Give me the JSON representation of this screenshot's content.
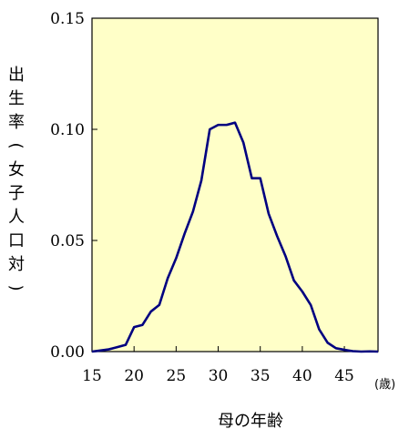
{
  "chart_data": {
    "type": "line",
    "title": "",
    "xlabel": "母の年齢",
    "xunit": "(歳)",
    "ylabel": "出生率(女子人口対)",
    "xlim": [
      15,
      49
    ],
    "ylim": [
      0,
      0.15
    ],
    "xticks": [
      15,
      20,
      25,
      30,
      35,
      40,
      45
    ],
    "xtick_labels": [
      "15",
      "20",
      "25",
      "30",
      "35",
      "40",
      "45"
    ],
    "yticks": [
      0,
      0.05,
      0.1,
      0.15
    ],
    "ytick_labels": [
      "0.00",
      "0.05",
      "0.10",
      "0.15"
    ],
    "grid": false,
    "legend": "none",
    "plot_background": "#FFFFC8",
    "line_color": "#000080",
    "series": [
      {
        "x": [
          15,
          16,
          17,
          18,
          19,
          20,
          21,
          22,
          23,
          24,
          25,
          26,
          27,
          28,
          29,
          30,
          31,
          32,
          33,
          34,
          35,
          36,
          37,
          38,
          39,
          40,
          41,
          42,
          43,
          44,
          45,
          46,
          47,
          48,
          49
        ],
        "values": [
          0.0,
          0.0005,
          0.001,
          0.002,
          0.003,
          0.011,
          0.012,
          0.018,
          0.021,
          0.033,
          0.042,
          0.053,
          0.063,
          0.077,
          0.1,
          0.102,
          0.102,
          0.103,
          0.094,
          0.078,
          0.078,
          0.062,
          0.052,
          0.043,
          0.032,
          0.027,
          0.021,
          0.01,
          0.004,
          0.0015,
          0.0008,
          0.0002,
          0.0,
          0.0001,
          0.0
        ]
      }
    ]
  }
}
